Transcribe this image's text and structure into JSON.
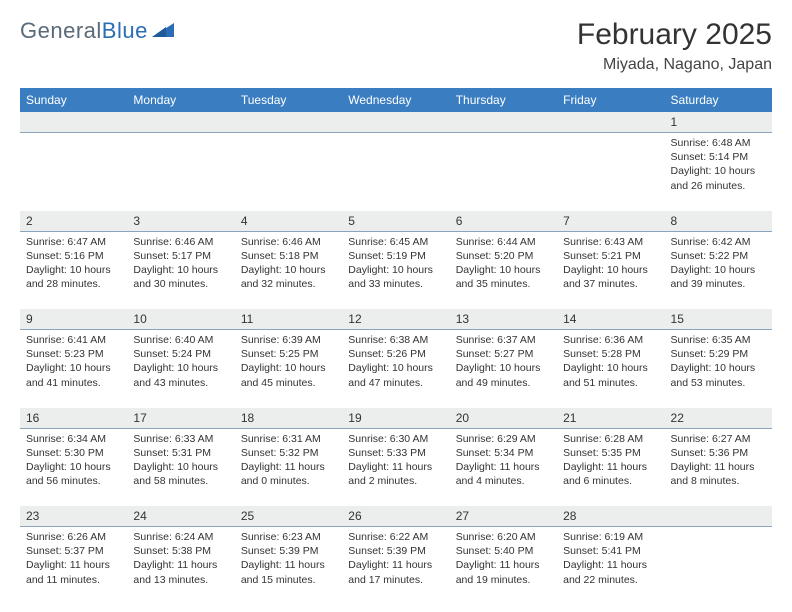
{
  "logo": {
    "text1": "General",
    "text2": "Blue"
  },
  "title": "February 2025",
  "location": "Miyada, Nagano, Japan",
  "dow": [
    "Sunday",
    "Monday",
    "Tuesday",
    "Wednesday",
    "Thursday",
    "Friday",
    "Saturday"
  ],
  "colors": {
    "header_bar": "#3a7ec1",
    "daynum_bg": "#eceeee",
    "row_border": "#8aa5bd",
    "logo_gray": "#5a6a78",
    "logo_blue": "#2a6db5"
  },
  "weeks": [
    [
      null,
      null,
      null,
      null,
      null,
      null,
      {
        "n": "1",
        "sunrise": "Sunrise: 6:48 AM",
        "sunset": "Sunset: 5:14 PM",
        "day1": "Daylight: 10 hours",
        "day2": "and 26 minutes."
      }
    ],
    [
      {
        "n": "2",
        "sunrise": "Sunrise: 6:47 AM",
        "sunset": "Sunset: 5:16 PM",
        "day1": "Daylight: 10 hours",
        "day2": "and 28 minutes."
      },
      {
        "n": "3",
        "sunrise": "Sunrise: 6:46 AM",
        "sunset": "Sunset: 5:17 PM",
        "day1": "Daylight: 10 hours",
        "day2": "and 30 minutes."
      },
      {
        "n": "4",
        "sunrise": "Sunrise: 6:46 AM",
        "sunset": "Sunset: 5:18 PM",
        "day1": "Daylight: 10 hours",
        "day2": "and 32 minutes."
      },
      {
        "n": "5",
        "sunrise": "Sunrise: 6:45 AM",
        "sunset": "Sunset: 5:19 PM",
        "day1": "Daylight: 10 hours",
        "day2": "and 33 minutes."
      },
      {
        "n": "6",
        "sunrise": "Sunrise: 6:44 AM",
        "sunset": "Sunset: 5:20 PM",
        "day1": "Daylight: 10 hours",
        "day2": "and 35 minutes."
      },
      {
        "n": "7",
        "sunrise": "Sunrise: 6:43 AM",
        "sunset": "Sunset: 5:21 PM",
        "day1": "Daylight: 10 hours",
        "day2": "and 37 minutes."
      },
      {
        "n": "8",
        "sunrise": "Sunrise: 6:42 AM",
        "sunset": "Sunset: 5:22 PM",
        "day1": "Daylight: 10 hours",
        "day2": "and 39 minutes."
      }
    ],
    [
      {
        "n": "9",
        "sunrise": "Sunrise: 6:41 AM",
        "sunset": "Sunset: 5:23 PM",
        "day1": "Daylight: 10 hours",
        "day2": "and 41 minutes."
      },
      {
        "n": "10",
        "sunrise": "Sunrise: 6:40 AM",
        "sunset": "Sunset: 5:24 PM",
        "day1": "Daylight: 10 hours",
        "day2": "and 43 minutes."
      },
      {
        "n": "11",
        "sunrise": "Sunrise: 6:39 AM",
        "sunset": "Sunset: 5:25 PM",
        "day1": "Daylight: 10 hours",
        "day2": "and 45 minutes."
      },
      {
        "n": "12",
        "sunrise": "Sunrise: 6:38 AM",
        "sunset": "Sunset: 5:26 PM",
        "day1": "Daylight: 10 hours",
        "day2": "and 47 minutes."
      },
      {
        "n": "13",
        "sunrise": "Sunrise: 6:37 AM",
        "sunset": "Sunset: 5:27 PM",
        "day1": "Daylight: 10 hours",
        "day2": "and 49 minutes."
      },
      {
        "n": "14",
        "sunrise": "Sunrise: 6:36 AM",
        "sunset": "Sunset: 5:28 PM",
        "day1": "Daylight: 10 hours",
        "day2": "and 51 minutes."
      },
      {
        "n": "15",
        "sunrise": "Sunrise: 6:35 AM",
        "sunset": "Sunset: 5:29 PM",
        "day1": "Daylight: 10 hours",
        "day2": "and 53 minutes."
      }
    ],
    [
      {
        "n": "16",
        "sunrise": "Sunrise: 6:34 AM",
        "sunset": "Sunset: 5:30 PM",
        "day1": "Daylight: 10 hours",
        "day2": "and 56 minutes."
      },
      {
        "n": "17",
        "sunrise": "Sunrise: 6:33 AM",
        "sunset": "Sunset: 5:31 PM",
        "day1": "Daylight: 10 hours",
        "day2": "and 58 minutes."
      },
      {
        "n": "18",
        "sunrise": "Sunrise: 6:31 AM",
        "sunset": "Sunset: 5:32 PM",
        "day1": "Daylight: 11 hours",
        "day2": "and 0 minutes."
      },
      {
        "n": "19",
        "sunrise": "Sunrise: 6:30 AM",
        "sunset": "Sunset: 5:33 PM",
        "day1": "Daylight: 11 hours",
        "day2": "and 2 minutes."
      },
      {
        "n": "20",
        "sunrise": "Sunrise: 6:29 AM",
        "sunset": "Sunset: 5:34 PM",
        "day1": "Daylight: 11 hours",
        "day2": "and 4 minutes."
      },
      {
        "n": "21",
        "sunrise": "Sunrise: 6:28 AM",
        "sunset": "Sunset: 5:35 PM",
        "day1": "Daylight: 11 hours",
        "day2": "and 6 minutes."
      },
      {
        "n": "22",
        "sunrise": "Sunrise: 6:27 AM",
        "sunset": "Sunset: 5:36 PM",
        "day1": "Daylight: 11 hours",
        "day2": "and 8 minutes."
      }
    ],
    [
      {
        "n": "23",
        "sunrise": "Sunrise: 6:26 AM",
        "sunset": "Sunset: 5:37 PM",
        "day1": "Daylight: 11 hours",
        "day2": "and 11 minutes."
      },
      {
        "n": "24",
        "sunrise": "Sunrise: 6:24 AM",
        "sunset": "Sunset: 5:38 PM",
        "day1": "Daylight: 11 hours",
        "day2": "and 13 minutes."
      },
      {
        "n": "25",
        "sunrise": "Sunrise: 6:23 AM",
        "sunset": "Sunset: 5:39 PM",
        "day1": "Daylight: 11 hours",
        "day2": "and 15 minutes."
      },
      {
        "n": "26",
        "sunrise": "Sunrise: 6:22 AM",
        "sunset": "Sunset: 5:39 PM",
        "day1": "Daylight: 11 hours",
        "day2": "and 17 minutes."
      },
      {
        "n": "27",
        "sunrise": "Sunrise: 6:20 AM",
        "sunset": "Sunset: 5:40 PM",
        "day1": "Daylight: 11 hours",
        "day2": "and 19 minutes."
      },
      {
        "n": "28",
        "sunrise": "Sunrise: 6:19 AM",
        "sunset": "Sunset: 5:41 PM",
        "day1": "Daylight: 11 hours",
        "day2": "and 22 minutes."
      },
      null
    ]
  ]
}
